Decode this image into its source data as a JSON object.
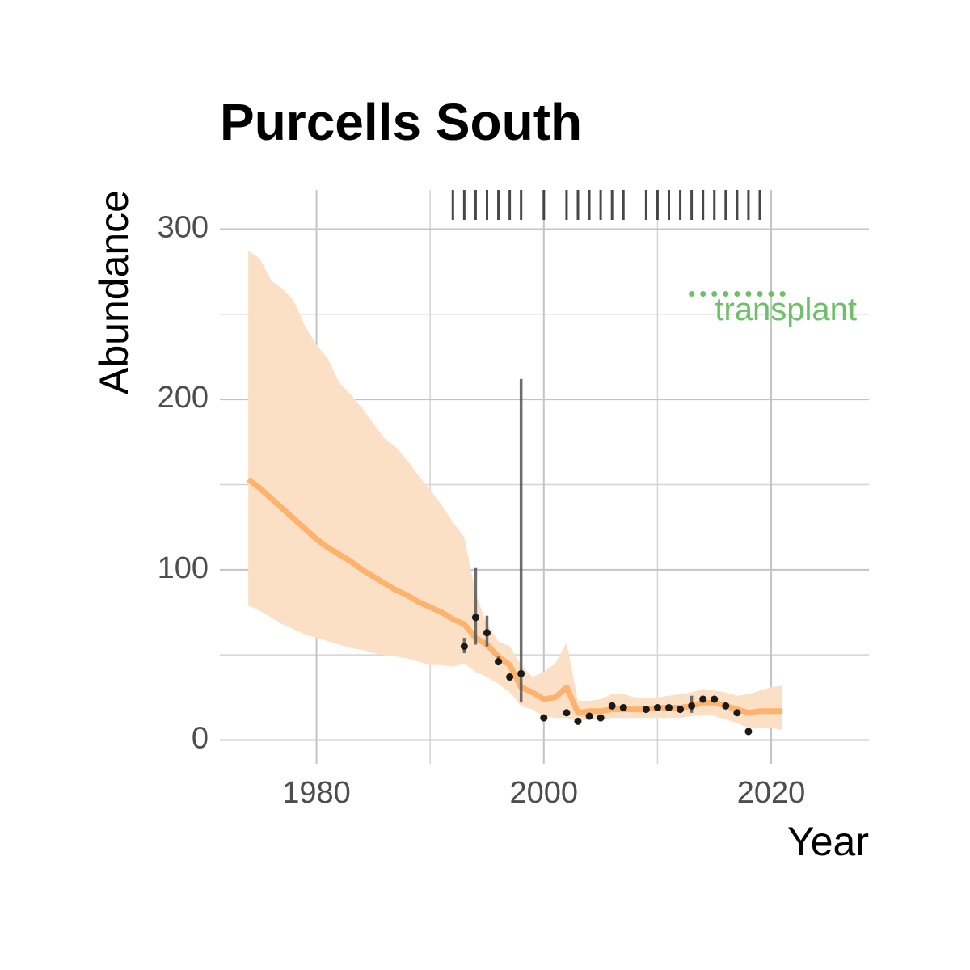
{
  "chart_data": {
    "type": "line",
    "title": "Purcells South",
    "x_label": "Year",
    "y_label": "Abundance",
    "xlim": [
      1971.5,
      2028.6
    ],
    "ylim": [
      -14,
      323
    ],
    "xticks": [
      1980,
      2000,
      2020
    ],
    "yticks": [
      0,
      100,
      200,
      300
    ],
    "xminor": [
      1990,
      2010
    ],
    "yminor": [
      50,
      150,
      250
    ],
    "grid": true,
    "model": {
      "color": "#fdb26e",
      "ribbon_color": "#fbe0c6",
      "x": [
        1974,
        1975,
        1976,
        1977,
        1978,
        1979,
        1980,
        1981,
        1982,
        1983,
        1984,
        1985,
        1986,
        1987,
        1988,
        1989,
        1990,
        1991,
        1992,
        1993,
        1994,
        1995,
        1996,
        1997,
        1998,
        1999,
        2000,
        2001,
        2002,
        2003,
        2004,
        2005,
        2006,
        2007,
        2008,
        2009,
        2010,
        2011,
        2012,
        2013,
        2014,
        2015,
        2016,
        2017,
        2018,
        2019,
        2020,
        2021
      ],
      "values": [
        153,
        148,
        142,
        136,
        130,
        124,
        118,
        113,
        109,
        105,
        100,
        96,
        92,
        88,
        85,
        81,
        78,
        75,
        71,
        68,
        60,
        56,
        49,
        44,
        31,
        28,
        24,
        25,
        31,
        16,
        17,
        17,
        18,
        18,
        18,
        18,
        19,
        19,
        19,
        20,
        22,
        22,
        20,
        18,
        16,
        17,
        17,
        17
      ],
      "upper": [
        287,
        283,
        270,
        265,
        258,
        243,
        232,
        224,
        210,
        203,
        195,
        186,
        177,
        172,
        164,
        155,
        147,
        138,
        128,
        119,
        86,
        68,
        58,
        55,
        44,
        37,
        40,
        45,
        57,
        23,
        23,
        24,
        27,
        27,
        25,
        25,
        25,
        26,
        27,
        28,
        30,
        29,
        28,
        26,
        27,
        29,
        31,
        32
      ],
      "lower": [
        79,
        76,
        72,
        68,
        65,
        62,
        60,
        58,
        56,
        54,
        53,
        51,
        50,
        49,
        48,
        46,
        44,
        44,
        43,
        45,
        40,
        37,
        33,
        28,
        20,
        18,
        14,
        13,
        13,
        11,
        12,
        12,
        13,
        13,
        13,
        13,
        13,
        13,
        13,
        14,
        15,
        14,
        12,
        10,
        7,
        7,
        7,
        6
      ]
    },
    "observed": {
      "color": "#1a1a1a",
      "bar_color": "#555555",
      "x": [
        1993,
        1994,
        1995,
        1996,
        1997,
        1998,
        2000,
        2002,
        2003,
        2004,
        2005,
        2006,
        2007,
        2009,
        2010,
        2011,
        2012,
        2013,
        2014,
        2015,
        2016,
        2017,
        2018
      ],
      "values": [
        55,
        72,
        63,
        46,
        37,
        39,
        13,
        16,
        11,
        14,
        13,
        20,
        19,
        18,
        19,
        19,
        18,
        20,
        24,
        24,
        20,
        16,
        5
      ],
      "lower": [
        51,
        56,
        55,
        44,
        null,
        22,
        null,
        null,
        null,
        null,
        null,
        null,
        null,
        null,
        null,
        null,
        null,
        16,
        null,
        null,
        null,
        null,
        null
      ],
      "upper": [
        60,
        101,
        73,
        49,
        null,
        212,
        null,
        null,
        null,
        null,
        null,
        null,
        null,
        null,
        null,
        null,
        null,
        26,
        null,
        null,
        null,
        null,
        null
      ]
    },
    "rug": {
      "color": "#333333",
      "x": [
        1992,
        1993,
        1994,
        1995,
        1996,
        1997,
        1998,
        2000,
        2002,
        2003,
        2004,
        2005,
        2006,
        2007,
        2009,
        2010,
        2011,
        2012,
        2013,
        2014,
        2015,
        2016,
        2017,
        2018,
        2019
      ]
    },
    "annotation": {
      "text": "transplant",
      "color": "#6dbf6a",
      "x": [
        2013,
        2014,
        2015,
        2016,
        2017,
        2018,
        2019,
        2020,
        2021
      ],
      "y": 262
    }
  }
}
